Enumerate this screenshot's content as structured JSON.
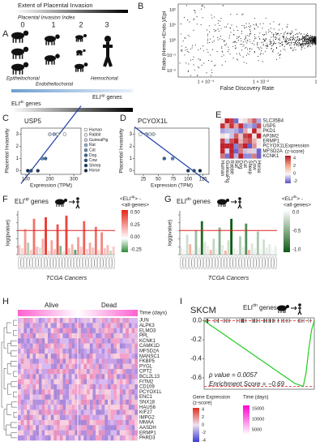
{
  "species": [
    "Human",
    "Rabbit",
    "GuineaPig",
    "Rat",
    "Cat",
    "Dog",
    "Cow",
    "Sheep",
    "Horse"
  ],
  "species_colors": [
    "#ffffff",
    "#e8eef8",
    "#c8d4ec",
    "#8fb0d8",
    "#5a8cc4",
    "#3068a8",
    "#1d4f8f",
    "#123a70",
    "#0a2550"
  ],
  "invasivity": [
    3,
    3,
    3,
    3,
    1,
    1,
    0,
    0,
    0
  ],
  "A": {
    "letter": "A",
    "title": "Extent of Placental Invasion",
    "index_label": "Placental Invasion Index",
    "indices": [
      0,
      1,
      2,
      3
    ],
    "types": [
      "Epitheliochorial",
      "Endotheliochorial",
      "Hemochorial"
    ],
    "up": {
      "base": "ELI",
      "sup": "up",
      "rest": " genes"
    },
    "dn": {
      "base": "ELI",
      "sup": "dn",
      "rest": " genes"
    }
  },
  "B": {
    "letter": "B",
    "ylabel": "Ratio (Hemo.+Endo.)/Epi",
    "xlabel": "False Discovery Rate",
    "yticks": [
      "10²",
      "10¹",
      "10⁰",
      "10⁻¹",
      "10⁻²"
    ],
    "xticks": [
      "1 × 10⁻⁴",
      "1 × 10⁻²",
      "1"
    ]
  },
  "C": {
    "letter": "C",
    "title": "USP5",
    "xlabel": "Expression (TPM)",
    "ylabel": "Placental Invasivity",
    "xticks": [
      100,
      200,
      300
    ],
    "yticks": [
      0,
      1,
      2,
      3
    ],
    "expression": [
      262,
      232,
      200,
      218,
      168,
      182,
      122,
      150,
      108
    ]
  },
  "D": {
    "letter": "D",
    "title": "PCYOX1L",
    "xticks": [
      25,
      50,
      75,
      100,
      125
    ],
    "yticks": [
      0,
      1,
      2,
      3
    ],
    "expression": [
      20,
      36,
      42,
      30,
      74,
      60,
      110,
      100,
      120
    ]
  },
  "E": {
    "letter": "E",
    "genes": [
      "SLC35B4",
      "USP5",
      "PKD1",
      "AP3M2",
      "ERMP1",
      "PCYOX1L",
      "MFSD2A",
      "KCNK1"
    ],
    "columns": [
      "Human",
      "GuineaPig",
      "Rabbit",
      "Rat",
      "Dog",
      "Cat",
      "Sheep",
      "Cow",
      "Horse"
    ],
    "legend_title": [
      "Expression",
      "(z-score)"
    ],
    "legend_ticks": [
      "4",
      "2",
      "0",
      "-2"
    ]
  },
  "F": {
    "letter": "F",
    "heading": {
      "base": "ELI",
      "sup": "up",
      "rest": " genes"
    },
    "legend": {
      "l1": "<ELI",
      "sup": "up",
      "l1b": "> -",
      "l2": "<all-genes>"
    },
    "legend_ticks": [
      "0.50",
      "0.25",
      "0.00",
      "-0.25"
    ],
    "ylabel": "log(pvalue)",
    "xlabel": "TCGA Cancers",
    "values": [
      1.2,
      0.8,
      3.2,
      1.5,
      0.6,
      4.5,
      1.0,
      0.9,
      2.0,
      4.7,
      0.5,
      1.8,
      0.7,
      3.8,
      1.1,
      0.4,
      4.9,
      0.8,
      1.3,
      0.6,
      2.2,
      1.0,
      4.2,
      0.7,
      1.5,
      0.9,
      3.5,
      0.6,
      2.8,
      0.8,
      1.2,
      0.5,
      1.0
    ],
    "diffs": [
      0.1,
      0.05,
      0.2,
      -0.1,
      0.08,
      0.3,
      0.12,
      -0.05,
      0.15,
      0.45,
      0.06,
      0.18,
      0.1,
      0.38,
      -0.15,
      0.04,
      0.42,
      0.09,
      0.14,
      -0.2,
      0.2,
      0.1,
      0.35,
      0.07,
      0.16,
      0.11,
      0.3,
      0.05,
      0.25,
      0.1,
      0.13,
      -0.08,
      0.09
    ]
  },
  "G": {
    "letter": "G",
    "heading": {
      "base": "ELI",
      "sup": "dn",
      "rest": " genes"
    },
    "legend": {
      "l1": "<ELI",
      "sup": "dn",
      "l1b": "> -",
      "l2": "<all-genes>"
    },
    "legend_ticks": [
      "0.0",
      "-0.5",
      "-1.0"
    ],
    "ylabel": "log(pvalue)",
    "xlabel": "TCGA Cancers",
    "values": [
      1.0,
      0.7,
      2.5,
      1.3,
      0.5,
      3.1,
      0.9,
      4.2,
      1.6,
      1.1,
      0.6,
      2.0,
      0.8,
      3.4,
      1.2,
      0.5,
      1.8,
      4.5,
      0.9,
      0.7,
      2.3,
      1.0,
      3.9,
      0.6,
      1.4,
      0.8,
      2.9,
      0.7,
      1.9,
      0.9,
      1.3,
      0.6,
      1.1
    ],
    "diffs": [
      -0.1,
      -0.05,
      -0.2,
      0.05,
      -0.08,
      -0.4,
      -0.1,
      -0.9,
      -0.15,
      -0.1,
      0.04,
      -0.25,
      -0.06,
      -0.5,
      -0.12,
      0.05,
      -0.2,
      -1.0,
      -0.1,
      -0.05,
      -0.3,
      -0.1,
      -0.7,
      0.03,
      -0.15,
      -0.08,
      -0.35,
      -0.05,
      -0.2,
      -0.1,
      -0.12,
      -0.04,
      -0.1
    ]
  },
  "H": {
    "letter": "H",
    "groups": [
      "Alive",
      "Dead"
    ],
    "time_label": "Time (days)",
    "genes": [
      "JUN",
      "ALPK3",
      "ELMO3",
      "PPL",
      "KCNK1",
      "CAMK1D",
      "MFSD2A",
      "MANSC1",
      "FKBP5",
      "PYGL",
      "CPT2",
      "BCL2L13",
      "FITM2",
      "CD109",
      "PCYOX1L",
      "ENC1",
      "SNX18",
      "HAUS6",
      "KIF27",
      "IMPG2",
      "MMAA",
      "AASDH",
      "ERMP1",
      "PARD3"
    ],
    "ge_legend": [
      "Gene Expression",
      "(z-score)"
    ],
    "ge_ticks": [
      "4",
      "2",
      "0",
      "-2",
      "-4"
    ],
    "time_legend": "Time (days)",
    "time_ticks": [
      "15000",
      "10000",
      "5000"
    ]
  },
  "I": {
    "letter": "I",
    "title": "SKCM",
    "heading": {
      "base": "ELI",
      "sup": "dn",
      "rest": " genes"
    },
    "yticks": [
      {
        "value": 0,
        "label": "0.0"
      },
      -0.2,
      -0.4,
      -0.6
    ],
    "es": [
      0,
      -0.02,
      -0.04,
      -0.06,
      -0.08,
      -0.1,
      -0.12,
      -0.14,
      -0.16,
      -0.18,
      -0.2,
      -0.22,
      -0.24,
      -0.26,
      -0.28,
      -0.3,
      -0.32,
      -0.34,
      -0.36,
      -0.38,
      -0.4,
      -0.42,
      -0.44,
      -0.46,
      -0.48,
      -0.5,
      -0.52,
      -0.54,
      -0.56,
      -0.58,
      -0.6,
      -0.62,
      -0.64,
      -0.66,
      -0.67,
      -0.68,
      -0.69,
      -0.55,
      -0.3,
      -0.1,
      0
    ],
    "pvalue": "p value = 0.0057",
    "score": "Enrichment Score = −0.69"
  }
}
